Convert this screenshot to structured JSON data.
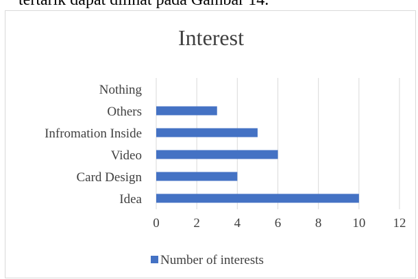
{
  "page": {
    "top_text": "tertarik dapat dilihat pada Gambar 14."
  },
  "chart_data": {
    "type": "bar",
    "orientation": "horizontal",
    "title": "Interest",
    "categories": [
      "Idea",
      "Card Design",
      "Video",
      "Infromation Inside",
      "Others",
      "Nothing"
    ],
    "series": [
      {
        "name": "Number of interests",
        "values": [
          10,
          4,
          6,
          5,
          3,
          0
        ],
        "color": "#4472c4"
      }
    ],
    "xlim": [
      0,
      12
    ],
    "xticks": [
      0,
      2,
      4,
      6,
      8,
      10,
      12
    ],
    "grid": true,
    "legend_position": "bottom"
  }
}
